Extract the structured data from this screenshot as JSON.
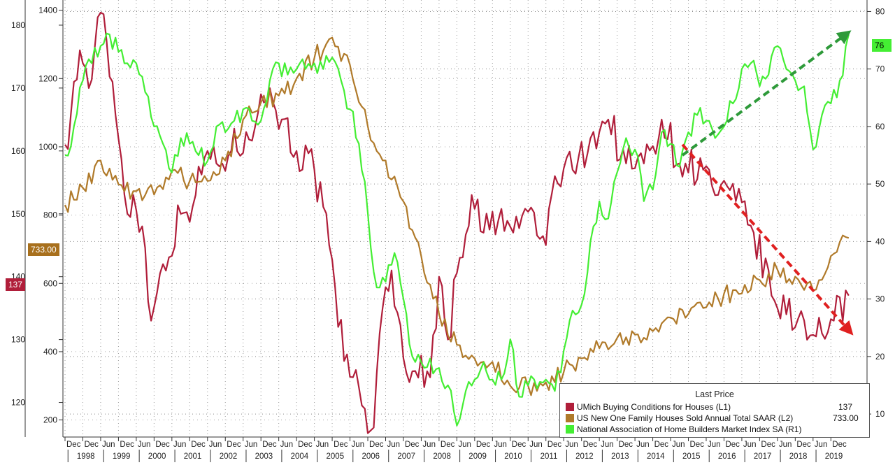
{
  "chart_data": {
    "type": "line",
    "x_axis": {
      "month_labels": [
        "Dec",
        "Dec",
        "Jun",
        "Dec",
        "Jun",
        "Dec",
        "Jun",
        "Dec",
        "Jun",
        "Dec",
        "Jun",
        "Dec",
        "Jun",
        "Dec",
        "Jun",
        "Dec",
        "Jun",
        "Dec",
        "Jun",
        "Dec",
        "Jun",
        "Dec",
        "Jun",
        "Dec",
        "Jun",
        "Dec",
        "Jun",
        "Dec",
        "Jun",
        "Dec",
        "Jun",
        "Dec",
        "Jun",
        "Dec",
        "Jun",
        "Dec",
        "Jun",
        "Dec",
        "Jun",
        "Dec",
        "Jun",
        "Dec",
        "Jun",
        "Dec"
      ],
      "year_labels": [
        "1998",
        "1999",
        "2000",
        "2001",
        "2002",
        "2003",
        "2004",
        "2005",
        "2006",
        "2007",
        "2008",
        "2009",
        "2010",
        "2011",
        "2012",
        "2013",
        "2014",
        "2015",
        "2016",
        "2017",
        "2018",
        "2019"
      ],
      "range": [
        "1997-12",
        "2020-01"
      ]
    },
    "axes": {
      "left1": {
        "ticks": [
          120,
          130,
          140,
          150,
          160,
          170,
          180
        ],
        "ylim": [
          114.5,
          184
        ]
      },
      "left2": {
        "ticks": [
          200,
          400,
          600,
          800,
          1000,
          1200,
          1400
        ],
        "ylim": [
          150,
          1430
        ]
      },
      "right": {
        "ticks": [
          10,
          20,
          30,
          40,
          50,
          60,
          70,
          80
        ],
        "ylim": [
          6,
          82
        ]
      }
    },
    "grid": true,
    "legend_position": "bottom-right",
    "series": [
      {
        "name": "UMich Buying Conditions for Houses  (L1)",
        "axis": "left1",
        "color": "#b01e3a",
        "last": "137",
        "anchors": [
          [
            "1997-12",
            161
          ],
          [
            "1998-02",
            166
          ],
          [
            "1998-05",
            176
          ],
          [
            "1998-08",
            170
          ],
          [
            "1998-12",
            182
          ],
          [
            "1999-04",
            171
          ],
          [
            "1999-06",
            162
          ],
          [
            "1999-09",
            150
          ],
          [
            "1999-11",
            153
          ],
          [
            "2000-02",
            148
          ],
          [
            "2000-05",
            133
          ],
          [
            "2000-09",
            142
          ],
          [
            "2001-03",
            150
          ],
          [
            "2001-08",
            153
          ],
          [
            "2001-12",
            160
          ],
          [
            "2002-03",
            158
          ],
          [
            "2002-08",
            160
          ],
          [
            "2003-01",
            163
          ],
          [
            "2003-05",
            166
          ],
          [
            "2003-09",
            170
          ],
          [
            "2004-01",
            165
          ],
          [
            "2004-06",
            160
          ],
          [
            "2004-12",
            157
          ],
          [
            "2005-05",
            145
          ],
          [
            "2005-08",
            132
          ],
          [
            "2006-01",
            124
          ],
          [
            "2006-05",
            119
          ],
          [
            "2006-08",
            116
          ],
          [
            "2006-11",
            135
          ],
          [
            "2007-02",
            141
          ],
          [
            "2007-06",
            127
          ],
          [
            "2007-10",
            125
          ],
          [
            "2008-03",
            124
          ],
          [
            "2008-06",
            140
          ],
          [
            "2008-09",
            130
          ],
          [
            "2009-01",
            143
          ],
          [
            "2009-05",
            153
          ],
          [
            "2009-09",
            147
          ],
          [
            "2010-02",
            149
          ],
          [
            "2010-07",
            147
          ],
          [
            "2011-01",
            151
          ],
          [
            "2011-04",
            146
          ],
          [
            "2011-06",
            145
          ],
          [
            "2011-09",
            156
          ],
          [
            "2012-03",
            157
          ],
          [
            "2012-09",
            162
          ],
          [
            "2013-03",
            165
          ],
          [
            "2013-09",
            158
          ],
          [
            "2014-03",
            158
          ],
          [
            "2014-09",
            165
          ],
          [
            "2015-03",
            158
          ],
          [
            "2015-05",
            158
          ],
          [
            "2015-11",
            157
          ],
          [
            "2016-04",
            153
          ],
          [
            "2016-10",
            152
          ],
          [
            "2017-04",
            147
          ],
          [
            "2017-10",
            137
          ],
          [
            "2018-03",
            134
          ],
          [
            "2018-09",
            133
          ],
          [
            "2019-03",
            131
          ],
          [
            "2019-07",
            133
          ],
          [
            "2019-12",
            137
          ]
        ]
      },
      {
        "name": "US New One Family Houses Sold Annual Total SAAR  (L2)",
        "axis": "left2",
        "color": "#b07a2a",
        "last": "733.00",
        "anchors": [
          [
            "1997-12",
            830
          ],
          [
            "1998-06",
            880
          ],
          [
            "1998-12",
            960
          ],
          [
            "1999-06",
            890
          ],
          [
            "1999-12",
            870
          ],
          [
            "2000-06",
            860
          ],
          [
            "2000-12",
            930
          ],
          [
            "2001-06",
            900
          ],
          [
            "2001-12",
            900
          ],
          [
            "2002-06",
            960
          ],
          [
            "2002-12",
            1080
          ],
          [
            "2003-06",
            1130
          ],
          [
            "2003-12",
            1150
          ],
          [
            "2004-06",
            1200
          ],
          [
            "2004-12",
            1260
          ],
          [
            "2005-06",
            1320
          ],
          [
            "2005-12",
            1240
          ],
          [
            "2006-06",
            1060
          ],
          [
            "2006-12",
            960
          ],
          [
            "2007-06",
            840
          ],
          [
            "2007-12",
            680
          ],
          [
            "2008-06",
            510
          ],
          [
            "2008-12",
            420
          ],
          [
            "2009-06",
            380
          ],
          [
            "2009-12",
            370
          ],
          [
            "2010-06",
            300
          ],
          [
            "2010-12",
            300
          ],
          [
            "2011-06",
            310
          ],
          [
            "2011-12",
            340
          ],
          [
            "2012-06",
            380
          ],
          [
            "2012-12",
            410
          ],
          [
            "2013-06",
            440
          ],
          [
            "2013-12",
            450
          ],
          [
            "2014-06",
            460
          ],
          [
            "2014-12",
            500
          ],
          [
            "2015-06",
            510
          ],
          [
            "2015-12",
            530
          ],
          [
            "2016-06",
            570
          ],
          [
            "2016-12",
            570
          ],
          [
            "2017-06",
            610
          ],
          [
            "2017-12",
            640
          ],
          [
            "2018-06",
            620
          ],
          [
            "2018-12",
            580
          ],
          [
            "2019-06",
            680
          ],
          [
            "2019-12",
            733
          ]
        ]
      },
      {
        "name": "National Association of Home Builders Market Index SA  (R1)",
        "axis": "right",
        "color": "#44ee33",
        "last": "76",
        "anchors": [
          [
            "1997-12",
            55
          ],
          [
            "1998-03",
            60
          ],
          [
            "1998-06",
            68
          ],
          [
            "1998-09",
            71
          ],
          [
            "1998-12",
            74
          ],
          [
            "1999-03",
            76
          ],
          [
            "1999-06",
            73
          ],
          [
            "1999-09",
            71
          ],
          [
            "1999-12",
            71
          ],
          [
            "2000-03",
            66
          ],
          [
            "2000-06",
            60
          ],
          [
            "2000-09",
            57
          ],
          [
            "2000-12",
            52
          ],
          [
            "2001-03",
            58
          ],
          [
            "2001-06",
            57
          ],
          [
            "2001-09",
            55
          ],
          [
            "2001-12",
            54
          ],
          [
            "2002-03",
            60
          ],
          [
            "2002-06",
            59
          ],
          [
            "2002-09",
            61
          ],
          [
            "2002-12",
            63
          ],
          [
            "2003-03",
            61
          ],
          [
            "2003-06",
            61
          ],
          [
            "2003-09",
            68
          ],
          [
            "2003-12",
            71
          ],
          [
            "2004-03",
            69
          ],
          [
            "2004-06",
            70
          ],
          [
            "2004-09",
            70
          ],
          [
            "2004-12",
            71
          ],
          [
            "2005-03",
            70
          ],
          [
            "2005-06",
            72
          ],
          [
            "2005-09",
            68
          ],
          [
            "2005-12",
            63
          ],
          [
            "2006-03",
            57
          ],
          [
            "2006-06",
            45
          ],
          [
            "2006-09",
            32
          ],
          [
            "2006-12",
            33
          ],
          [
            "2007-03",
            38
          ],
          [
            "2007-06",
            30
          ],
          [
            "2007-09",
            20
          ],
          [
            "2007-12",
            19
          ],
          [
            "2008-06",
            18
          ],
          [
            "2008-09",
            15
          ],
          [
            "2008-12",
            8
          ],
          [
            "2009-03",
            14
          ],
          [
            "2009-06",
            16
          ],
          [
            "2009-09",
            19
          ],
          [
            "2009-12",
            16
          ],
          [
            "2010-03",
            16
          ],
          [
            "2010-06",
            23
          ],
          [
            "2010-09",
            13
          ],
          [
            "2010-12",
            15
          ],
          [
            "2011-06",
            16
          ],
          [
            "2011-09",
            14
          ],
          [
            "2011-12",
            21
          ],
          [
            "2012-03",
            28
          ],
          [
            "2012-06",
            29
          ],
          [
            "2012-09",
            40
          ],
          [
            "2012-12",
            47
          ],
          [
            "2013-03",
            44
          ],
          [
            "2013-06",
            52
          ],
          [
            "2013-09",
            58
          ],
          [
            "2013-12",
            56
          ],
          [
            "2014-03",
            47
          ],
          [
            "2014-06",
            49
          ],
          [
            "2014-09",
            59
          ],
          [
            "2014-12",
            57
          ],
          [
            "2015-03",
            53
          ],
          [
            "2015-06",
            59
          ],
          [
            "2015-09",
            62
          ],
          [
            "2015-12",
            61
          ],
          [
            "2016-03",
            58
          ],
          [
            "2016-06",
            60
          ],
          [
            "2016-09",
            64
          ],
          [
            "2016-12",
            70
          ],
          [
            "2017-03",
            71
          ],
          [
            "2017-06",
            67
          ],
          [
            "2017-09",
            69
          ],
          [
            "2017-12",
            74
          ],
          [
            "2018-03",
            70
          ],
          [
            "2018-06",
            68
          ],
          [
            "2018-09",
            67
          ],
          [
            "2018-12",
            56
          ],
          [
            "2019-03",
            62
          ],
          [
            "2019-06",
            64
          ],
          [
            "2019-09",
            68
          ],
          [
            "2019-12",
            76
          ]
        ]
      }
    ],
    "annotations": [
      {
        "kind": "trend-arrow",
        "color": "#2e9a3a",
        "from": [
          "2015-04",
          55
        ],
        "to": [
          "2019-11",
          76
        ],
        "axis": "right"
      },
      {
        "kind": "trend-arrow",
        "color": "#e02020",
        "from": [
          "2015-04",
          161
        ],
        "to": [
          "2019-12",
          131.5
        ],
        "axis": "left1"
      }
    ]
  },
  "legend": {
    "title": "Last Price",
    "rows": [
      {
        "label": "UMich Buying Conditions for Houses  (L1)",
        "value": "137",
        "color": "#b01e3a"
      },
      {
        "label": "US New One Family Houses Sold Annual Total SAAR  (L2)",
        "value": "733.00",
        "color": "#b07a2a"
      },
      {
        "label": "National Association of Home Builders Market Index SA  (R1)",
        "value": "76",
        "color": "#44ee33"
      }
    ]
  },
  "badges": {
    "l1_last": "137",
    "l2_last": "733.00",
    "r1_last": "76",
    "l1_color": "#b01e3a",
    "l2_color": "#a8701d",
    "r1_color": "#44ee33"
  }
}
